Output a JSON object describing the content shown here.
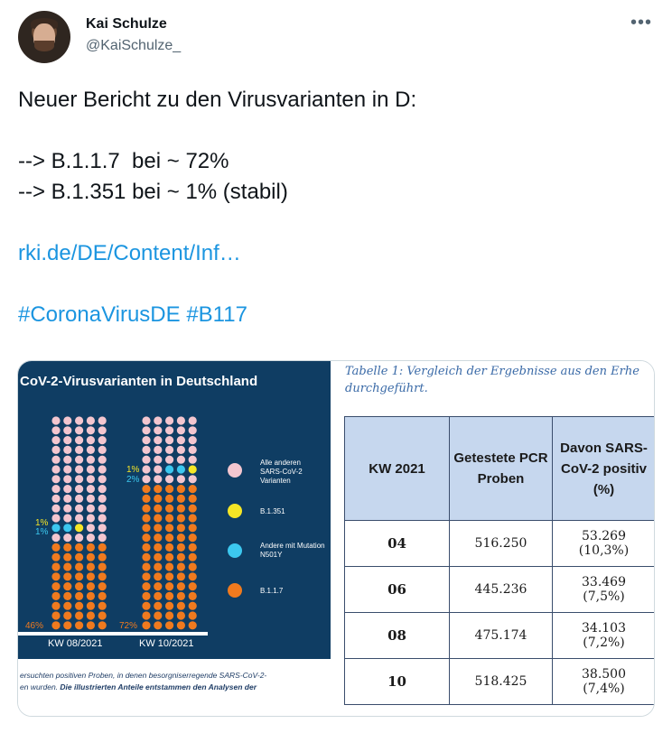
{
  "author": {
    "name": "Kai Schulze",
    "handle": "@KaiSchulze_"
  },
  "more_icon": "more-horizontal-icon",
  "tweet": {
    "line1": "Neuer Bericht zu den Virusvarianten in D:",
    "line2": "--> B.1.1.7  bei ~ 72%",
    "line3": "--> B.1.351 bei ~ 1% (stabil)",
    "link": "rki.de/DE/Content/Inf…",
    "hashtags": "#CoronaVirusDE #B117"
  },
  "image_left": {
    "title": "CoV-2-Virusvarianten in Deutschland",
    "kw1": "KW 08/2021",
    "kw2": "KW 10/2021",
    "kw1_b117": "46%",
    "kw2_b117": "72%",
    "kw1_b1351": "1%",
    "kw1_n501y": "1%",
    "kw2_b1351": "1%",
    "kw2_n501y": "2%",
    "legend": {
      "other": "Alle anderen SARS-CoV-2 Varianten",
      "b1351": "B.1.351",
      "n501y": "Andere mit Mutation N501Y",
      "b117": "B.1.1.7"
    },
    "colors": {
      "background": "#0f3d63",
      "other": "#f3c6cf",
      "b1351": "#f5e626",
      "n501y": "#3cc8ef",
      "b117": "#f07a1e"
    },
    "caption1": "ersuchten positiven Proben, in denen besorgniserregende SARS-CoV-2-",
    "caption2a": "en wurden. ",
    "caption2b": "Die illustrierten Anteile entstammen den Analysen der"
  },
  "image_right": {
    "caption1": "Tabelle 1: Vergleich der Ergebnisse aus den Erhe",
    "caption2": "durchgeführt.",
    "headers": [
      "KW 2021",
      "Getestete PCR Proben",
      "Davon SARS-CoV-2 positiv (%)"
    ],
    "rows": [
      {
        "kw": "04",
        "tests": "516.250",
        "positive": "53.269",
        "pct": "(10,3%)"
      },
      {
        "kw": "06",
        "tests": "445.236",
        "positive": "33.469",
        "pct": "(7,5%)"
      },
      {
        "kw": "08",
        "tests": "475.174",
        "positive": "34.103",
        "pct": "(7,2%)"
      },
      {
        "kw": "10",
        "tests": "518.425",
        "positive": "38.500",
        "pct": "(7,4%)"
      }
    ]
  }
}
